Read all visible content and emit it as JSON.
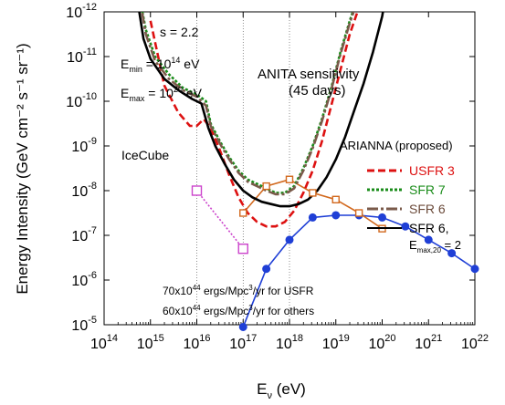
{
  "chart_data": {
    "type": "line",
    "xlabel": {
      "main": "E",
      "sub": "ν",
      "unit": " (eV)"
    },
    "ylabel": "Energy Intensity (GeV cm⁻² s⁻¹ sr⁻¹)",
    "x_log": true,
    "y_log": true,
    "xlim_exp": [
      14,
      22
    ],
    "ylim_exp": [
      -12,
      -5
    ],
    "x_ticks": [
      {
        "base": "10",
        "exp": "14",
        "v": 14
      },
      {
        "base": "10",
        "exp": "15",
        "v": 15
      },
      {
        "base": "10",
        "exp": "16",
        "v": 16
      },
      {
        "base": "10",
        "exp": "17",
        "v": 17
      },
      {
        "base": "10",
        "exp": "18",
        "v": 18
      },
      {
        "base": "10",
        "exp": "19",
        "v": 19
      },
      {
        "base": "10",
        "exp": "20",
        "v": 20
      },
      {
        "base": "10",
        "exp": "21",
        "v": 21
      },
      {
        "base": "10",
        "exp": "22",
        "v": 22
      }
    ],
    "y_ticks": [
      {
        "base": "10",
        "exp": "-5",
        "v": -5
      },
      {
        "base": "10",
        "exp": "-6",
        "v": -6
      },
      {
        "base": "10",
        "exp": "-7",
        "v": -7
      },
      {
        "base": "10",
        "exp": "-8",
        "v": -8
      },
      {
        "base": "10",
        "exp": "-9",
        "v": -9
      },
      {
        "base": "10",
        "exp": "-10",
        "v": -10
      },
      {
        "base": "10",
        "exp": "-11",
        "v": -11
      },
      {
        "base": "10",
        "exp": "-12",
        "v": -12
      }
    ],
    "annotations": {
      "s": "s = 2.2",
      "emin": {
        "main": "E",
        "sub": "min",
        "rest": " = 10",
        "sup": "14",
        "tail": " eV"
      },
      "emax": {
        "main": "E",
        "sub": "max",
        "rest": " = 10",
        "sup": "20",
        "tail": " eV"
      },
      "anita_1": "ANITA sensitivity",
      "anita_2": "(45 days)",
      "icecube": "IceCube",
      "arianna": "ARIANNA (proposed)",
      "norm_usfr": {
        "a": "70x10",
        "sup1": "44",
        "b": " ergs/Mpc",
        "sup2": "3",
        "c": "/yr for USFR"
      },
      "norm_others": {
        "a": "60x10",
        "sup1": "44",
        "b": " ergs/Mpc",
        "sup2": "3",
        "c": "/yr for others"
      }
    },
    "legend": {
      "position": "right",
      "entries": [
        {
          "label": "USFR 3",
          "color": "#dd1111",
          "dash": "8,4",
          "text_color": "#dd1111"
        },
        {
          "label": "SFR 7",
          "color": "#1a8c1a",
          "dash": "3,2",
          "text_color": "#1a8c1a"
        },
        {
          "label": "SFR 6",
          "color": "#7a5a4a",
          "dash": "12,3,3,3",
          "text_color": "#6b4a3a"
        },
        {
          "label": "SFR 6,",
          "color": "#000000",
          "dash": "",
          "text_color": "#000000",
          "line2": {
            "main": "E",
            "sub": "max,20",
            "rest": " = 2"
          }
        }
      ]
    },
    "series": [
      {
        "name": "ANITA sensitivity (45 days)",
        "color": "#1f3fd6",
        "marker": "circle",
        "dash": "",
        "x": [
          17.0,
          17.5,
          18.0,
          18.5,
          19.0,
          19.5,
          20.0,
          20.5,
          21.0,
          21.5,
          22.0
        ],
        "y": [
          -4.95,
          -6.25,
          -6.9,
          -7.4,
          -7.45,
          -7.45,
          -7.4,
          -7.2,
          -6.9,
          -6.6,
          -6.25
        ]
      },
      {
        "name": "ARIANNA (proposed)",
        "color": "#d2691e",
        "marker": "square",
        "dash": "",
        "x": [
          17.0,
          17.5,
          18.0,
          18.5,
          19.0,
          19.5,
          20.0
        ],
        "y": [
          -7.5,
          -8.1,
          -8.25,
          -7.95,
          -7.8,
          -7.5,
          -7.15
        ]
      },
      {
        "name": "IceCube",
        "color": "#cc44cc",
        "marker": "square",
        "dash": "2,2",
        "x": [
          16.0,
          17.0
        ],
        "y": [
          -8.0,
          -6.7
        ]
      },
      {
        "name": "USFR 3",
        "color": "#dd1111",
        "marker": "",
        "dash": "8,4",
        "x": [
          15.0,
          15.3,
          15.6,
          15.85,
          16.0,
          16.15,
          16.3,
          16.5,
          16.7,
          16.9,
          17.1,
          17.3,
          17.5,
          17.7,
          17.9,
          18.1,
          18.3,
          18.5,
          18.7,
          18.9,
          19.1,
          19.3,
          19.5,
          19.6
        ],
        "y": [
          -11.8,
          -10.35,
          -9.75,
          -9.45,
          -9.45,
          -9.6,
          -9.4,
          -8.9,
          -8.35,
          -7.85,
          -7.5,
          -7.3,
          -7.2,
          -7.2,
          -7.3,
          -7.55,
          -7.95,
          -8.45,
          -9.1,
          -9.9,
          -10.7,
          -11.5,
          -12.1,
          -12.4
        ]
      },
      {
        "name": "SFR 7",
        "color": "#1a8c1a",
        "marker": "",
        "dash": "3,2",
        "x": [
          14.75,
          14.9,
          15.1,
          15.4,
          15.7,
          16.0,
          16.2,
          16.3,
          16.5,
          16.7,
          16.9,
          17.1,
          17.3,
          17.5,
          17.7,
          17.9,
          18.1,
          18.3,
          18.5,
          18.7,
          18.9,
          19.1,
          19.3,
          19.5,
          19.65
        ],
        "y": [
          -12.4,
          -11.6,
          -11.0,
          -10.6,
          -10.3,
          -10.15,
          -10.0,
          -9.5,
          -9.1,
          -8.75,
          -8.45,
          -8.25,
          -8.15,
          -8.05,
          -7.95,
          -7.95,
          -8.1,
          -8.5,
          -9.0,
          -9.6,
          -10.3,
          -11.1,
          -11.8,
          -12.4,
          -12.8
        ]
      },
      {
        "name": "SFR 6",
        "color": "#7a5a4a",
        "marker": "",
        "dash": "12,3,3,3",
        "x": [
          14.75,
          14.9,
          15.1,
          15.4,
          15.7,
          16.0,
          16.2,
          16.3,
          16.5,
          16.7,
          16.9,
          17.1,
          17.3,
          17.5,
          17.7,
          17.9,
          18.1,
          18.3,
          18.5,
          18.7,
          18.9,
          19.1,
          19.3,
          19.5,
          19.65
        ],
        "y": [
          -12.4,
          -11.5,
          -10.9,
          -10.5,
          -10.25,
          -10.1,
          -9.9,
          -9.45,
          -9.05,
          -8.7,
          -8.4,
          -8.2,
          -8.1,
          -8.0,
          -7.92,
          -7.92,
          -8.05,
          -8.45,
          -8.95,
          -9.55,
          -10.25,
          -11.05,
          -11.75,
          -12.35,
          -12.8
        ]
      },
      {
        "name": "SFR 6, Emax,20 = 2",
        "color": "#000000",
        "marker": "",
        "dash": "",
        "x": [
          14.7,
          14.85,
          15.0,
          15.3,
          15.6,
          15.9,
          16.1,
          16.25,
          16.4,
          16.6,
          16.8,
          17.0,
          17.2,
          17.4,
          17.6,
          17.8,
          18.0,
          18.2,
          18.4,
          18.6,
          18.8,
          19.0,
          19.2,
          19.4,
          19.6,
          19.8,
          20.0,
          20.1
        ],
        "y": [
          -12.4,
          -11.4,
          -10.95,
          -10.5,
          -10.25,
          -10.05,
          -9.95,
          -9.4,
          -9.0,
          -8.6,
          -8.25,
          -8.0,
          -7.85,
          -7.75,
          -7.7,
          -7.65,
          -7.65,
          -7.7,
          -7.8,
          -8.0,
          -8.3,
          -8.7,
          -9.2,
          -9.8,
          -10.4,
          -11.1,
          -11.9,
          -12.5
        ]
      }
    ]
  }
}
